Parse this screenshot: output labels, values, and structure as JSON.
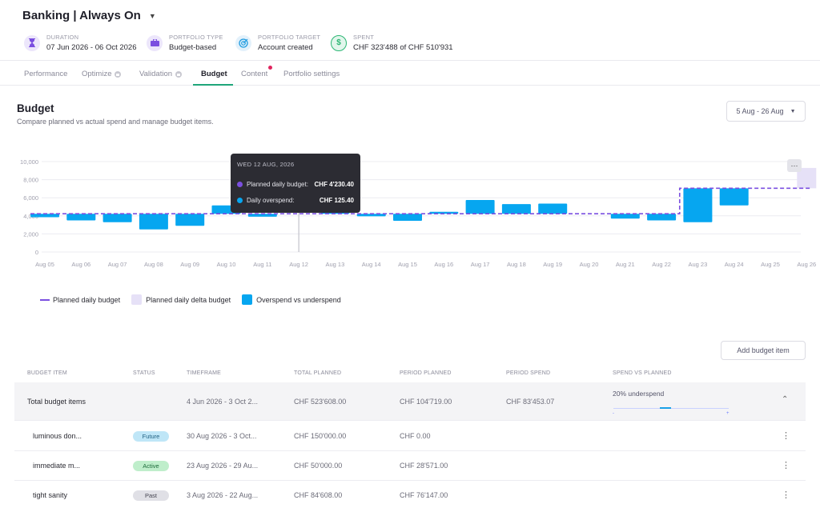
{
  "app": {
    "title": "Banking | Always On"
  },
  "meta": [
    {
      "label": "DURATION",
      "value": "07 Jun 2026 - 06 Oct 2026",
      "icon": "hourglass-icon",
      "color": "#ece6fb"
    },
    {
      "label": "PORTFOLIO TYPE",
      "value": "Budget-based",
      "icon": "portfolio-icon",
      "color": "#ece6fb"
    },
    {
      "label": "PORTFOLIO TARGET",
      "value": "Account created",
      "icon": "target-icon",
      "color": "#e3f1fb"
    },
    {
      "label": "SPENT",
      "value": "CHF 323'488 of CHF 510'931",
      "icon": "dollar-icon",
      "color": "#e2f6ec"
    }
  ],
  "tabs": [
    {
      "label": "Performance",
      "locked": false
    },
    {
      "label": "Optimize",
      "locked": true
    },
    {
      "label": "Validation",
      "locked": true
    },
    {
      "label": "Budget",
      "locked": false,
      "active": true
    },
    {
      "label": "Content",
      "locked": false,
      "notification": true
    },
    {
      "label": "Portfolio settings",
      "locked": false
    }
  ],
  "section": {
    "title": "Budget",
    "subtitle": "Compare planned vs actual spend and manage budget items.",
    "date_range": "5 Aug - 26 Aug"
  },
  "chart_data": {
    "type": "bar",
    "categories": [
      "Aug 05",
      "Aug 06",
      "Aug 07",
      "Aug 08",
      "Aug 09",
      "Aug 10",
      "Aug 11",
      "Aug 12",
      "Aug 13",
      "Aug 14",
      "Aug 15",
      "Aug 16",
      "Aug 17",
      "Aug 18",
      "Aug 19",
      "Aug 20",
      "Aug 21",
      "Aug 22",
      "Aug 23",
      "Aug 24",
      "Aug 25",
      "Aug 26"
    ],
    "yticks": [
      "0",
      "2,000",
      "4,000",
      "6,000",
      "8,000",
      "10,000"
    ],
    "ylim": [
      0,
      10000
    ],
    "grid": true,
    "series": [
      {
        "name": "Planned daily budget",
        "type": "dashed-step",
        "color": "#7b4fe0",
        "values": [
          4230,
          4230,
          4230,
          4230,
          4230,
          4230,
          4230,
          4230,
          4230,
          4230,
          4230,
          4230,
          4230,
          4230,
          4230,
          4230,
          4230,
          4230,
          7050,
          7050,
          7050,
          7050
        ]
      },
      {
        "name": "Planned daily delta budget",
        "type": "bar",
        "color": "#e6e1f7",
        "values": [
          null,
          null,
          null,
          null,
          null,
          null,
          null,
          null,
          null,
          null,
          null,
          null,
          null,
          null,
          null,
          null,
          null,
          null,
          null,
          null,
          null,
          [
            7050,
            9300
          ]
        ]
      },
      {
        "name": "Overspend vs underspend",
        "type": "floating-bar",
        "color": "#06a6f0",
        "ranges": [
          [
            3850,
            4230
          ],
          [
            3500,
            4230
          ],
          [
            3300,
            4230
          ],
          [
            2500,
            4230
          ],
          [
            2900,
            4230
          ],
          [
            4230,
            5150
          ],
          [
            3900,
            4230
          ],
          null,
          [
            4230,
            4900
          ],
          [
            3950,
            4230
          ],
          [
            3450,
            4230
          ],
          [
            4230,
            4450
          ],
          [
            4230,
            5750
          ],
          [
            4230,
            5300
          ],
          [
            4230,
            5350
          ],
          null,
          [
            3700,
            4230
          ],
          [
            3500,
            4230
          ],
          [
            3300,
            7050
          ],
          [
            5150,
            7050
          ],
          null,
          null
        ]
      }
    ]
  },
  "tooltip": {
    "date": "WED 12 AUG, 2026",
    "rows": [
      {
        "label": "Planned daily budget:",
        "value": "CHF 4'230.40",
        "color": "#7b4fe0"
      },
      {
        "label": "Daily overspend:",
        "value": "CHF 125.40",
        "color": "#06a6f0"
      }
    ]
  },
  "legend": [
    {
      "label": "Planned daily budget",
      "kind": "dash",
      "color": "#7b4fe0"
    },
    {
      "label": "Planned daily delta budget",
      "kind": "swatch",
      "color": "#e6e1f7"
    },
    {
      "label": "Overspend vs underspend",
      "kind": "swatch",
      "color": "#06a6f0"
    }
  ],
  "add_button": "Add budget item",
  "table": {
    "headers": [
      "BUDGET ITEM",
      "STATUS",
      "TIMEFRAME",
      "TOTAL PLANNED",
      "PERIOD PLANNED",
      "PERIOD SPEND",
      "SPEND VS PLANNED"
    ],
    "total": {
      "name": "Total budget items",
      "timeframe": "4 Jun 2026 - 3 Oct 2...",
      "total_planned": "CHF 523'608.00",
      "period_planned": "CHF 104'719.00",
      "period_spend": "CHF 83'453.07",
      "spend_vs_planned": "20% underspend",
      "minus": "-",
      "plus": "+"
    },
    "rows": [
      {
        "name": "luminous don...",
        "status": "Future",
        "status_bg": "#bfe6f7",
        "status_fg": "#1f5f80",
        "timeframe": "30 Aug 2026 - 3 Oct...",
        "total_planned": "CHF 150'000.00",
        "period_planned": "CHF 0.00"
      },
      {
        "name": "immediate m...",
        "status": "Active",
        "status_bg": "#bfeecb",
        "status_fg": "#1d6b3a",
        "timeframe": "23 Aug 2026 - 29 Au...",
        "total_planned": "CHF 50'000.00",
        "period_planned": "CHF 28'571.00"
      },
      {
        "name": "tight sanity",
        "status": "Past",
        "status_bg": "#e0e0e6",
        "status_fg": "#444450",
        "timeframe": "3 Aug 2026 - 22 Aug...",
        "total_planned": "CHF 84'608.00",
        "period_planned": "CHF 76'147.00"
      }
    ]
  }
}
